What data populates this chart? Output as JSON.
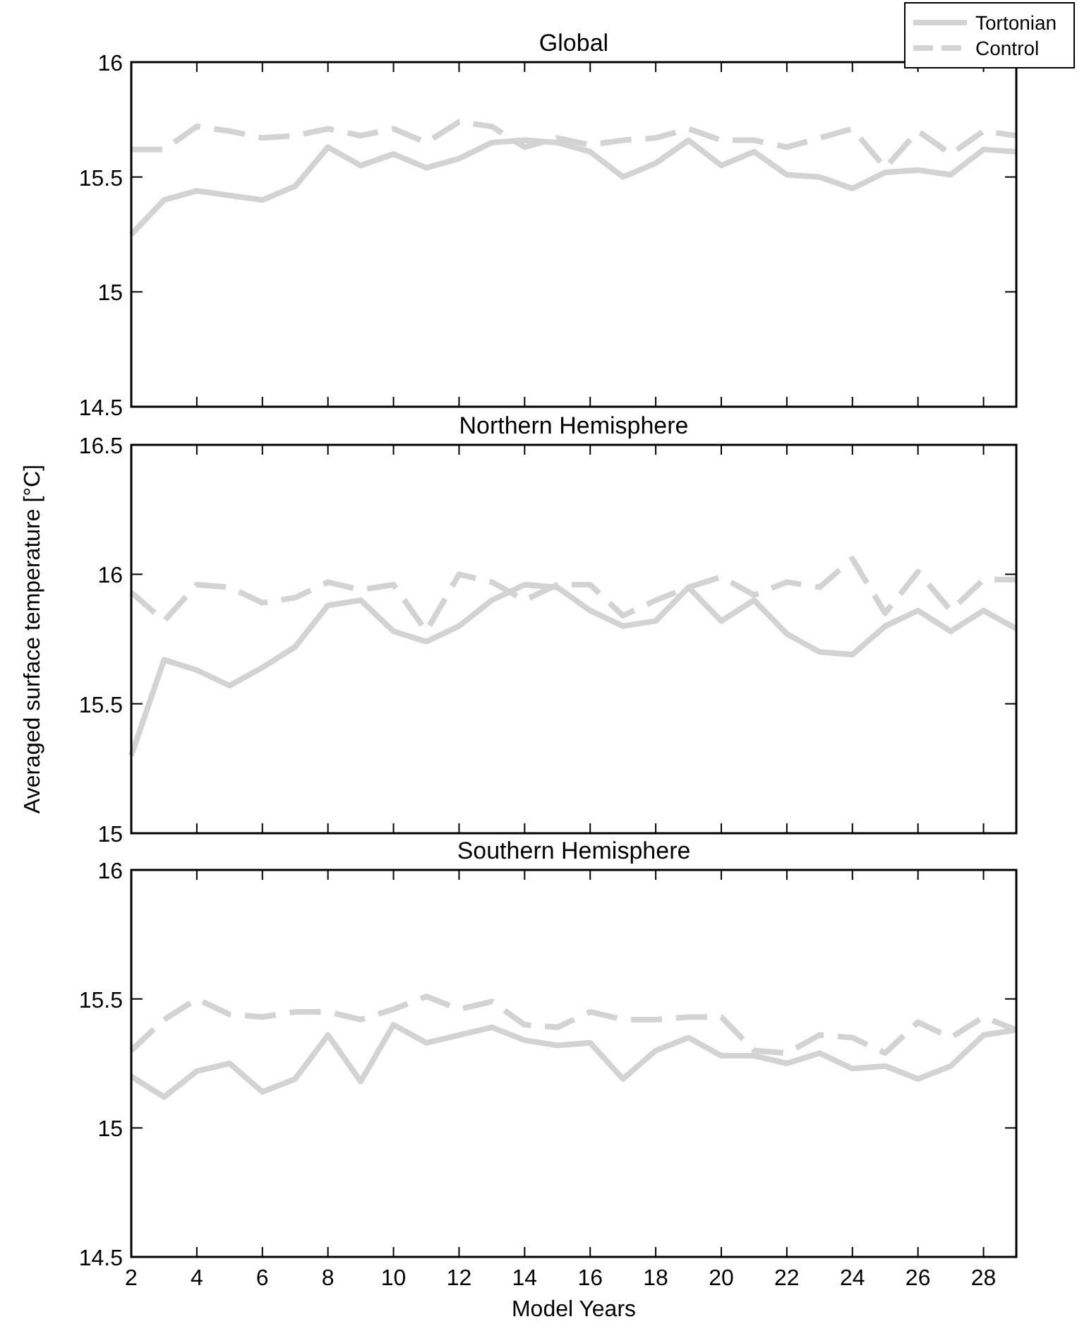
{
  "chart_data": [
    {
      "type": "line",
      "title": "Global",
      "x": [
        2,
        3,
        4,
        5,
        6,
        7,
        8,
        9,
        10,
        11,
        12,
        13,
        14,
        15,
        16,
        17,
        18,
        19,
        20,
        21,
        22,
        23,
        24,
        25,
        26,
        27,
        28,
        29
      ],
      "xlim": [
        2,
        29
      ],
      "xticks": [
        2,
        4,
        6,
        8,
        10,
        12,
        14,
        16,
        18,
        20,
        22,
        24,
        26,
        28
      ],
      "ylim": [
        14.5,
        16
      ],
      "yticks": [
        14.5,
        15,
        15.5,
        16
      ],
      "tick_labels": "y",
      "legend": "top right",
      "series": [
        {
          "name": "Tortonian",
          "color": "#d3d3d3",
          "line_style": "solid",
          "values": [
            15.25,
            15.4,
            15.44,
            15.42,
            15.4,
            15.46,
            15.63,
            15.55,
            15.6,
            15.54,
            15.58,
            15.65,
            15.66,
            15.65,
            15.61,
            15.5,
            15.56,
            15.66,
            15.55,
            15.61,
            15.51,
            15.5,
            15.45,
            15.52,
            15.53,
            15.51,
            15.62,
            15.61
          ]
        },
        {
          "name": "Control",
          "color": "#d3d3d3",
          "line_style": "dashed",
          "values": [
            15.62,
            15.62,
            15.72,
            15.7,
            15.67,
            15.68,
            15.71,
            15.68,
            15.71,
            15.65,
            15.74,
            15.72,
            15.63,
            15.67,
            15.64,
            15.66,
            15.67,
            15.71,
            15.66,
            15.66,
            15.63,
            15.67,
            15.71,
            15.54,
            15.7,
            15.6,
            15.7,
            15.68
          ]
        }
      ]
    },
    {
      "type": "line",
      "title": "Northern Hemisphere",
      "ylabel": "Averaged surface temperature [°C]",
      "x": [
        2,
        3,
        4,
        5,
        6,
        7,
        8,
        9,
        10,
        11,
        12,
        13,
        14,
        15,
        16,
        17,
        18,
        19,
        20,
        21,
        22,
        23,
        24,
        25,
        26,
        27,
        28,
        29
      ],
      "xlim": [
        2,
        29
      ],
      "xticks": [
        2,
        4,
        6,
        8,
        10,
        12,
        14,
        16,
        18,
        20,
        22,
        24,
        26,
        28
      ],
      "ylim": [
        15,
        16.5
      ],
      "yticks": [
        15,
        15.5,
        16,
        16.5
      ],
      "tick_labels": "y",
      "series": [
        {
          "color": "#d3d3d3",
          "line_style": "solid",
          "values": [
            15.3,
            15.67,
            15.63,
            15.57,
            15.64,
            15.72,
            15.88,
            15.9,
            15.78,
            15.74,
            15.8,
            15.9,
            15.96,
            15.95,
            15.86,
            15.8,
            15.82,
            15.95,
            15.82,
            15.9,
            15.77,
            15.7,
            15.69,
            15.8,
            15.86,
            15.78,
            15.86,
            15.79
          ]
        },
        {
          "color": "#d3d3d3",
          "line_style": "dashed",
          "values": [
            15.93,
            15.82,
            15.96,
            15.95,
            15.89,
            15.91,
            15.97,
            15.94,
            15.96,
            15.78,
            16.0,
            15.97,
            15.9,
            15.96,
            15.96,
            15.84,
            15.9,
            15.95,
            15.99,
            15.92,
            15.97,
            15.95,
            16.06,
            15.85,
            16.01,
            15.86,
            15.98,
            15.98
          ]
        }
      ]
    },
    {
      "type": "line",
      "title": "Southern Hemisphere",
      "xlabel": "Model Years",
      "x": [
        2,
        3,
        4,
        5,
        6,
        7,
        8,
        9,
        10,
        11,
        12,
        13,
        14,
        15,
        16,
        17,
        18,
        19,
        20,
        21,
        22,
        23,
        24,
        25,
        26,
        27,
        28,
        29
      ],
      "xlim": [
        2,
        29
      ],
      "xticks": [
        2,
        4,
        6,
        8,
        10,
        12,
        14,
        16,
        18,
        20,
        22,
        24,
        26,
        28
      ],
      "ylim": [
        14.5,
        16
      ],
      "yticks": [
        14.5,
        15,
        15.5,
        16
      ],
      "series": [
        {
          "color": "#d3d3d3",
          "line_style": "solid",
          "values": [
            15.2,
            15.12,
            15.22,
            15.25,
            15.14,
            15.19,
            15.36,
            15.18,
            15.4,
            15.33,
            15.36,
            15.39,
            15.34,
            15.32,
            15.33,
            15.19,
            15.3,
            15.35,
            15.28,
            15.28,
            15.25,
            15.29,
            15.23,
            15.24,
            15.19,
            15.24,
            15.36,
            15.38
          ]
        },
        {
          "color": "#d3d3d3",
          "line_style": "dashed",
          "values": [
            15.3,
            15.42,
            15.5,
            15.44,
            15.43,
            15.45,
            15.45,
            15.42,
            15.46,
            15.51,
            15.46,
            15.49,
            15.4,
            15.39,
            15.45,
            15.42,
            15.42,
            15.43,
            15.43,
            15.3,
            15.29,
            15.36,
            15.35,
            15.29,
            15.41,
            15.35,
            15.43,
            15.38
          ]
        }
      ]
    }
  ]
}
